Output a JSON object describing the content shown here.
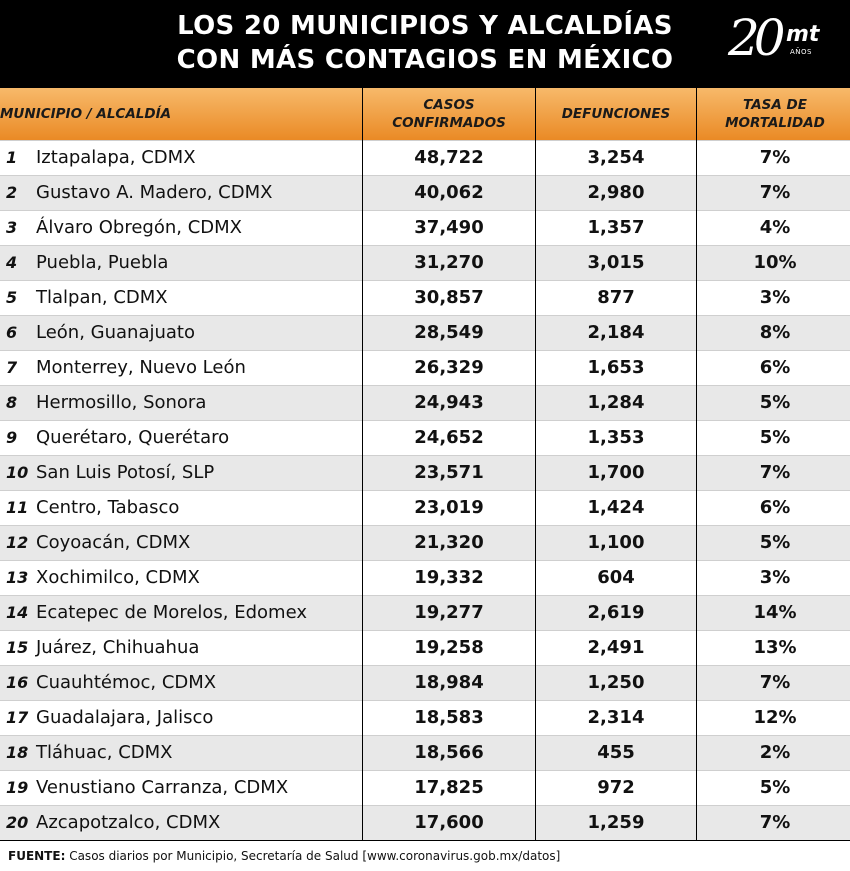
{
  "header": {
    "title_line1": "LOS 20 MUNICIPIOS Y ALCALDÍAS",
    "title_line2": "CON MÁS CONTAGIOS EN MÉXICO",
    "logo_number": "20",
    "logo_brand": "mt",
    "logo_sub": "AÑOS"
  },
  "colors": {
    "header_bg": "#000000",
    "column_header_orange": "#ea8a25",
    "row_stripe": "#e8e8e8"
  },
  "chart_data": {
    "type": "table",
    "columns": {
      "municipio": "MUNICIPIO / ALCALDÍA",
      "casos_line1": "CASOS",
      "casos_line2": "CONFIRMADOS",
      "defunciones": "DEFUNCIONES",
      "tasa_line1": "TASA DE",
      "tasa_line2": "MORTALIDAD"
    },
    "rows": [
      {
        "rank": "1",
        "municipio": "Iztapalapa, CDMX",
        "casos": "48,722",
        "defunciones": "3,254",
        "tasa": "7%"
      },
      {
        "rank": "2",
        "municipio": "Gustavo A. Madero, CDMX",
        "casos": "40,062",
        "defunciones": "2,980",
        "tasa": "7%"
      },
      {
        "rank": "3",
        "municipio": "Álvaro Obregón, CDMX",
        "casos": "37,490",
        "defunciones": "1,357",
        "tasa": "4%"
      },
      {
        "rank": "4",
        "municipio": "Puebla, Puebla",
        "casos": "31,270",
        "defunciones": "3,015",
        "tasa": "10%"
      },
      {
        "rank": "5",
        "municipio": "Tlalpan, CDMX",
        "casos": "30,857",
        "defunciones": "877",
        "tasa": "3%"
      },
      {
        "rank": "6",
        "municipio": "León, Guanajuato",
        "casos": "28,549",
        "defunciones": "2,184",
        "tasa": "8%"
      },
      {
        "rank": "7",
        "municipio": "Monterrey, Nuevo León",
        "casos": "26,329",
        "defunciones": "1,653",
        "tasa": "6%"
      },
      {
        "rank": "8",
        "municipio": "Hermosillo, Sonora",
        "casos": "24,943",
        "defunciones": "1,284",
        "tasa": "5%"
      },
      {
        "rank": "9",
        "municipio": "Querétaro, Querétaro",
        "casos": "24,652",
        "defunciones": "1,353",
        "tasa": "5%"
      },
      {
        "rank": "10",
        "municipio": "San Luis Potosí, SLP",
        "casos": "23,571",
        "defunciones": "1,700",
        "tasa": "7%"
      },
      {
        "rank": "11",
        "municipio": "Centro, Tabasco",
        "casos": "23,019",
        "defunciones": "1,424",
        "tasa": "6%"
      },
      {
        "rank": "12",
        "municipio": "Coyoacán, CDMX",
        "casos": "21,320",
        "defunciones": "1,100",
        "tasa": "5%"
      },
      {
        "rank": "13",
        "municipio": "Xochimilco, CDMX",
        "casos": "19,332",
        "defunciones": "604",
        "tasa": "3%"
      },
      {
        "rank": "14",
        "municipio": "Ecatepec de Morelos, Edomex",
        "casos": "19,277",
        "defunciones": "2,619",
        "tasa": "14%"
      },
      {
        "rank": "15",
        "municipio": "Juárez, Chihuahua",
        "casos": "19,258",
        "defunciones": "2,491",
        "tasa": "13%"
      },
      {
        "rank": "16",
        "municipio": "Cuauhtémoc, CDMX",
        "casos": "18,984",
        "defunciones": "1,250",
        "tasa": "7%"
      },
      {
        "rank": "17",
        "municipio": "Guadalajara, Jalisco",
        "casos": "18,583",
        "defunciones": "2,314",
        "tasa": "12%"
      },
      {
        "rank": "18",
        "municipio": "Tláhuac, CDMX",
        "casos": "18,566",
        "defunciones": "455",
        "tasa": "2%"
      },
      {
        "rank": "19",
        "municipio": "Venustiano Carranza, CDMX",
        "casos": "17,825",
        "defunciones": "972",
        "tasa": "5%"
      },
      {
        "rank": "20",
        "municipio": "Azcapotzalco, CDMX",
        "casos": "17,600",
        "defunciones": "1,259",
        "tasa": "7%"
      }
    ]
  },
  "footer": {
    "label": "FUENTE:",
    "text": "Casos diarios por Municipio, Secretaría de Salud [www.coronavirus.gob.mx/datos]"
  }
}
